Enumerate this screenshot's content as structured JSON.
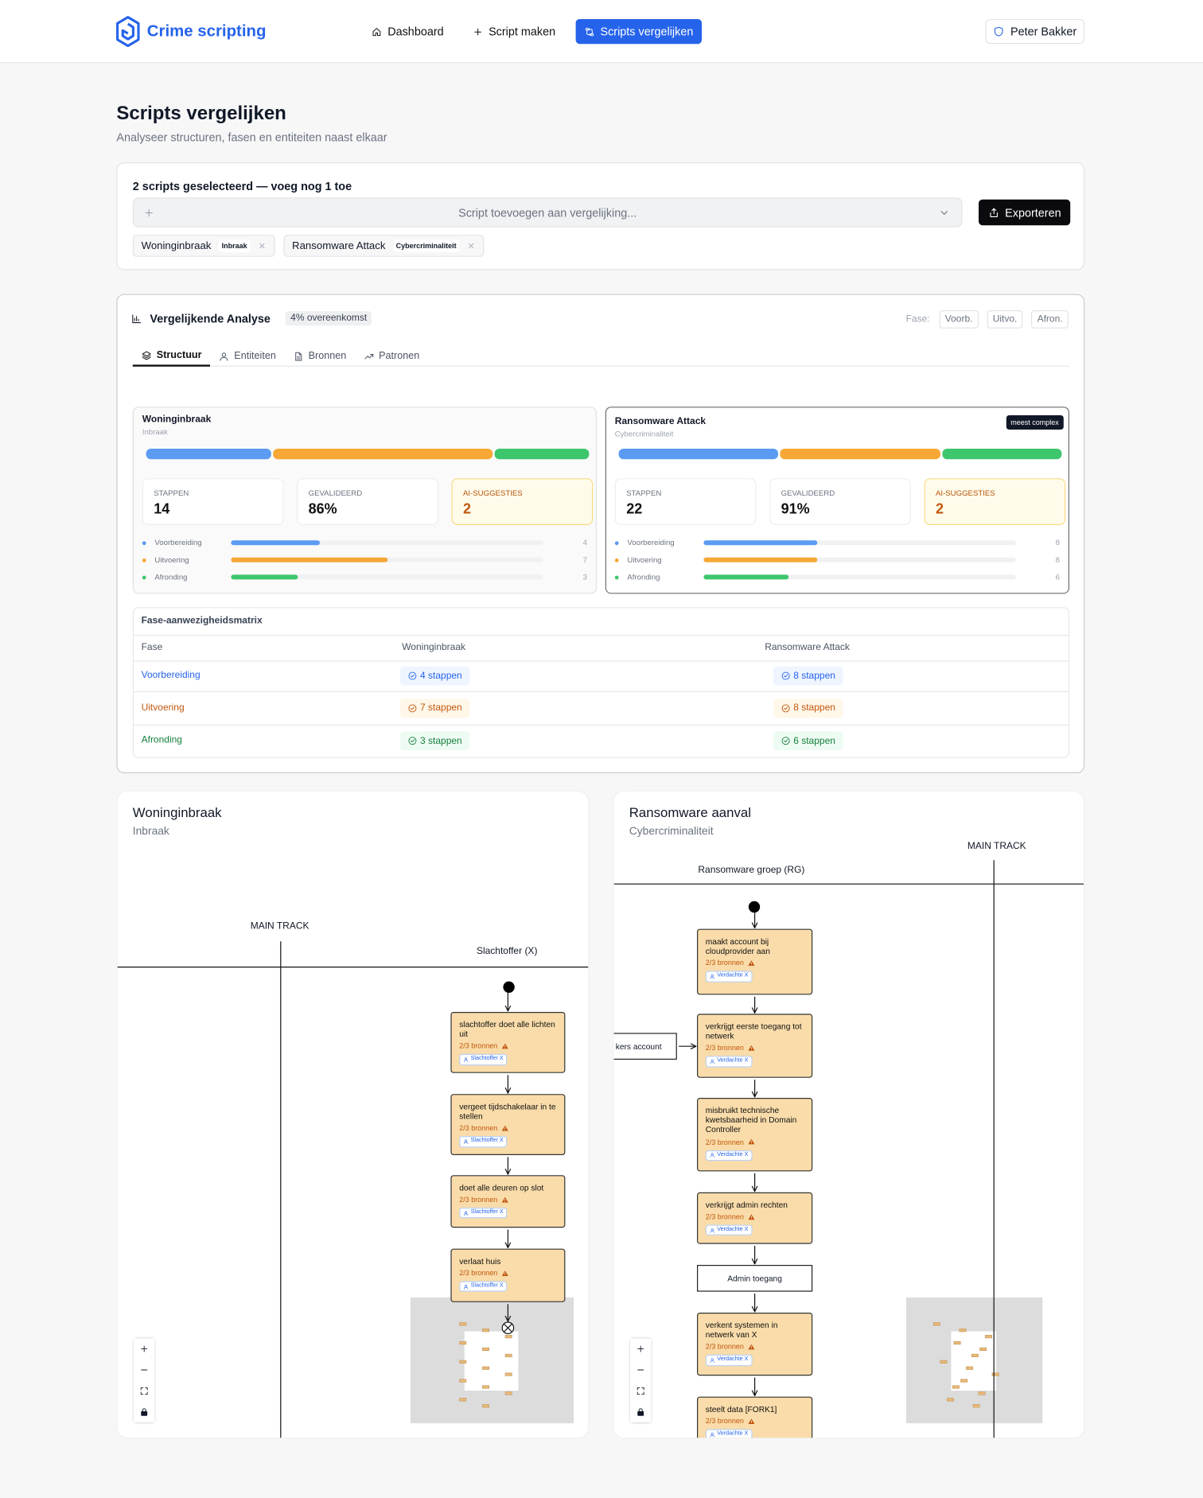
{
  "nav": {
    "brand": "Crime scripting",
    "links": [
      "Dashboard",
      "Script maken",
      "Scripts vergelijken"
    ],
    "active": 2,
    "user": "Peter Bakker"
  },
  "header": {
    "title": "Scripts vergelijken",
    "subtitle": "Analyseer structuren, fasen en entiteiten naast elkaar"
  },
  "selector": {
    "status": "2 scripts geselecteerd — voeg nog 1 toe",
    "placeholder": "Script toevoegen aan vergelijking...",
    "export": "Exporteren",
    "chips": [
      {
        "name": "Woninginbraak",
        "tag": "Inbraak"
      },
      {
        "name": "Ransomware Attack",
        "tag": "Cybercriminaliteit"
      }
    ]
  },
  "analysis": {
    "title": "Vergelijkende Analyse",
    "badge": "4% overeenkomst",
    "phase_label": "Fase:",
    "tabs": [
      "Structuur",
      "Entiteiten",
      "Bronnen",
      "Patronen"
    ],
    "active_tab": 0,
    "phases": [
      {
        "name": "Voorbereiding",
        "short": "Voorb.",
        "color": "#5b9bf1"
      },
      {
        "name": "Uitvoering",
        "short": "Uitvo.",
        "color": "#f6a735"
      },
      {
        "name": "Afronding",
        "short": "Afron.",
        "color": "#3ec66c"
      }
    ],
    "cards": [
      {
        "name": "Woninginbraak",
        "category": "Inbraak",
        "stats": [
          {
            "label": "STAPPEN",
            "value": "14"
          },
          {
            "label": "GEVALIDEERD",
            "value": "86%"
          },
          {
            "label": "AI-SUGGESTIES",
            "value": "2"
          }
        ],
        "counts": [
          4,
          7,
          3
        ]
      },
      {
        "name": "Ransomware Attack",
        "category": "Cybercriminaliteit",
        "badge": "meest complex",
        "stats": [
          {
            "label": "STAPPEN",
            "value": "22"
          },
          {
            "label": "GEVALIDEERD",
            "value": "91%"
          },
          {
            "label": "AI-SUGGESTIES",
            "value": "2"
          }
        ],
        "counts": [
          8,
          8,
          6
        ]
      }
    ],
    "matrix": {
      "title": "Fase-aanwezigheidsmatrix",
      "header": [
        "Fase",
        "Woninginbraak",
        "Ransomware Attack"
      ],
      "rows": [
        [
          "4 stappen",
          "8 stappen"
        ],
        [
          "7 stappen",
          "8 stappen"
        ],
        [
          "3 stappen",
          "6 stappen"
        ]
      ]
    }
  },
  "diagrams": [
    {
      "title": "Woninginbraak",
      "subtitle": "Inbraak",
      "lanes": [
        "MAIN TRACK",
        "Slachtoffer (X)"
      ],
      "nodes": [
        {
          "label": "slachtoffer doet alle lichten uit",
          "sources": "2/3 bronnen",
          "actor": "Slachtoffer X"
        },
        {
          "label": "vergeet tijdschakelaar in te stellen",
          "sources": "2/3 bronnen",
          "actor": "Slachtoffer X"
        },
        {
          "label": "doet alle deuren op slot",
          "sources": "2/3 bronnen",
          "actor": "Slachtoffer X"
        },
        {
          "label": "verlaat huis",
          "sources": "2/3 bronnen",
          "actor": "Slachtoffer X"
        }
      ]
    },
    {
      "title": "Ransomware aanval",
      "subtitle": "Cybercriminaliteit",
      "lanes": [
        "MAIN TRACK",
        "Ransomware groep (RG)"
      ],
      "nodes": [
        {
          "label": "maakt account bij cloudprovider aan",
          "sources": "2/3 bronnen",
          "actor": "Verdachte X"
        },
        {
          "label": "verkrijgt eerste toegang tot netwerk",
          "sources": "2/3 bronnen",
          "actor": "Verdachte X"
        },
        {
          "label": "misbruikt technische kwetsbaarheid in Domain Controller",
          "sources": "2/3 bronnen",
          "actor": "Verdachte X"
        },
        {
          "label": "verkrijgt admin rechten",
          "sources": "2/3 bronnen",
          "actor": "Verdachte X"
        },
        {
          "label": "Admin toegang"
        },
        {
          "label": "verkent systemen in netwerk van X",
          "sources": "2/3 bronnen",
          "actor": "Verdachte X"
        },
        {
          "label": "steelt data [FORK1]",
          "sources": "2/3 bronnen",
          "actor": "Verdachte X"
        }
      ],
      "side": {
        "label": "kers account"
      }
    }
  ]
}
